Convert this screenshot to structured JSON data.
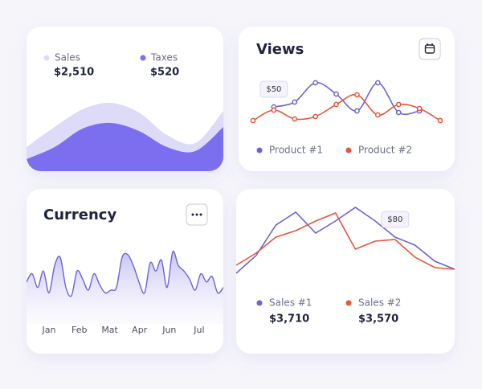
{
  "chart_data": [
    {
      "type": "area",
      "ylim": [
        0,
        100
      ],
      "series": [
        {
          "name": "Sales",
          "total": "$2,510",
          "color": "#dedbf8",
          "values": [
            30,
            55,
            77,
            85,
            73,
            45,
            35,
            75
          ]
        },
        {
          "name": "Taxes",
          "total": "$520",
          "color": "#7b6ff0",
          "values": [
            15,
            30,
            53,
            60,
            50,
            30,
            25,
            55
          ]
        }
      ]
    },
    {
      "type": "line",
      "title": "Views",
      "annotation": "$50",
      "xlim": [
        0,
        9
      ],
      "ylim": [
        10,
        90
      ],
      "series": [
        {
          "name": "Product #1",
          "color": "#6c63d9",
          "values": [
            null,
            47,
            53,
            77,
            63,
            42,
            77,
            40,
            42,
            null
          ]
        },
        {
          "name": "Product #2",
          "color": "#e8553a",
          "values": [
            30,
            43,
            32,
            35,
            50,
            62,
            37,
            50,
            45,
            30
          ]
        }
      ]
    },
    {
      "type": "wave",
      "title": "Currency",
      "color": "#6c63d9",
      "xlim": [
        0,
        35
      ],
      "ylim": [
        0,
        100
      ],
      "xticks": [
        {
          "value": 4,
          "label": "Jan"
        },
        {
          "value": 9.4,
          "label": "Feb"
        },
        {
          "value": 14.8,
          "label": "Mat"
        },
        {
          "value": 20.1,
          "label": "Apr"
        },
        {
          "value": 25.4,
          "label": "Jun"
        },
        {
          "value": 30.7,
          "label": "Jul"
        }
      ],
      "values": [
        40,
        55,
        30,
        60,
        20,
        70,
        85,
        30,
        15,
        60,
        45,
        25,
        55,
        35,
        20,
        25,
        30,
        85,
        90,
        70,
        40,
        20,
        75,
        60,
        80,
        30,
        95,
        70,
        60,
        45,
        25,
        55,
        40,
        50,
        20,
        30
      ]
    },
    {
      "type": "line",
      "annotation": "$80",
      "xlim": [
        0,
        11
      ],
      "ylim": [
        10,
        110
      ],
      "series": [
        {
          "name": "Sales #1",
          "total": "$3,710",
          "color": "#6c63d9",
          "values": [
            20,
            42,
            80,
            96,
            70,
            85,
            102,
            85,
            65,
            55,
            35,
            25
          ]
        },
        {
          "name": "Sales #2",
          "total": "$3,570",
          "color": "#e8553a",
          "values": [
            30,
            45,
            65,
            73,
            85,
            95,
            50,
            60,
            62,
            40,
            27,
            25
          ]
        }
      ]
    }
  ]
}
